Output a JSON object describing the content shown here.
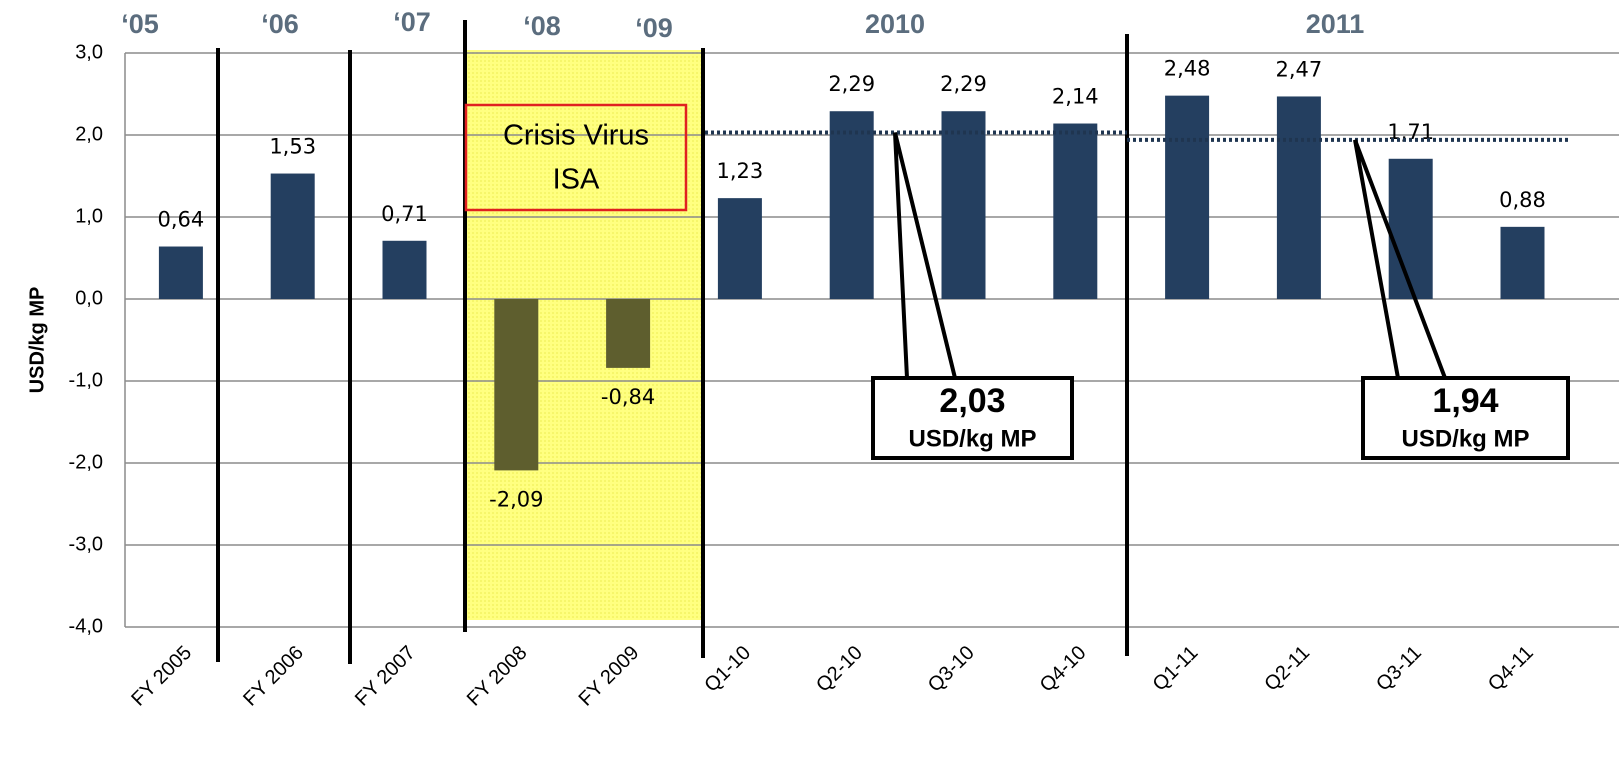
{
  "chart_data": {
    "type": "bar",
    "y_label": "USD/kg MP",
    "categories": [
      "FY 2005",
      "FY 2006",
      "FY 2007",
      "FY 2008",
      "FY 2009",
      "Q1-10",
      "Q2-10",
      "Q3-10",
      "Q4-10",
      "Q1-11",
      "Q2-11",
      "Q3-11",
      "Q4-11"
    ],
    "values": [
      0.64,
      1.53,
      0.71,
      -2.09,
      -0.84,
      1.23,
      2.29,
      2.29,
      2.14,
      2.48,
      2.47,
      1.71,
      0.88
    ],
    "value_labels": [
      "0,64",
      "1,53",
      "0,71",
      "-2,09",
      "-0,84",
      "1,23",
      "2,29",
      "2,29",
      "2,14",
      "2,48",
      "2,47",
      "1,71",
      "0,88"
    ],
    "colors": [
      "#243f60",
      "#243f60",
      "#243f60",
      "#5e5e2e",
      "#5e5e2e",
      "#243f60",
      "#243f60",
      "#243f60",
      "#243f60",
      "#243f60",
      "#243f60",
      "#243f60",
      "#243f60"
    ],
    "ylim": [
      -4,
      3
    ],
    "yticks": [
      {
        "value": -4,
        "label": "-4,0"
      },
      {
        "value": -3,
        "label": "-3,0"
      },
      {
        "value": -2,
        "label": "-2,0"
      },
      {
        "value": -1,
        "label": "-1,0"
      },
      {
        "value": 0,
        "label": "0,0"
      },
      {
        "value": 1,
        "label": "1,0"
      },
      {
        "value": 2,
        "label": "2,0"
      },
      {
        "value": 3,
        "label": "3,0"
      }
    ],
    "grid": true,
    "period_labels": [
      "‘05",
      "‘06",
      "‘07",
      "‘08",
      "‘09",
      "2010",
      "2011"
    ],
    "crisis_label": [
      "Crisis Virus",
      "ISA"
    ],
    "averages": [
      {
        "value": 2.03,
        "label": "2,03",
        "unit": "USD/kg MP"
      },
      {
        "value": 1.94,
        "label": "1,94",
        "unit": "USD/kg MP"
      }
    ]
  }
}
